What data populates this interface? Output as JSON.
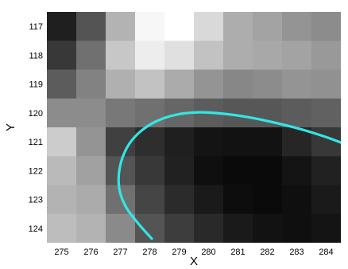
{
  "chart_data": {
    "type": "heatmap",
    "xlabel": "X",
    "ylabel": "Y",
    "x_ticks": [
      275,
      276,
      277,
      278,
      279,
      280,
      281,
      282,
      283,
      284
    ],
    "y_ticks": [
      117,
      118,
      119,
      120,
      121,
      122,
      123,
      124
    ],
    "xlim": [
      274.5,
      284.5
    ],
    "ylim": [
      116.5,
      124.5
    ],
    "y_axis_direction": "down",
    "colormap": "gray",
    "x_cells": [
      274.5,
      275.5,
      276.5,
      277.5,
      278.5,
      279.5,
      280.5,
      281.5,
      282.5,
      283.5,
      284.5
    ],
    "y_cells": [
      116.5,
      117.5,
      118.5,
      119.5,
      120.5,
      121.5,
      122.5,
      123.5,
      124.5
    ],
    "intensity": [
      [
        0.12,
        0.33,
        0.7,
        0.97,
        1.0,
        0.85,
        0.68,
        0.64,
        0.58,
        0.55
      ],
      [
        0.22,
        0.44,
        0.78,
        0.93,
        0.88,
        0.76,
        0.68,
        0.66,
        0.64,
        0.6
      ],
      [
        0.36,
        0.51,
        0.69,
        0.76,
        0.67,
        0.58,
        0.53,
        0.55,
        0.58,
        0.57
      ],
      [
        0.55,
        0.55,
        0.47,
        0.44,
        0.4,
        0.36,
        0.34,
        0.34,
        0.36,
        0.38
      ],
      [
        0.8,
        0.58,
        0.25,
        0.18,
        0.12,
        0.08,
        0.07,
        0.07,
        0.15,
        0.22
      ],
      [
        0.73,
        0.63,
        0.33,
        0.22,
        0.13,
        0.06,
        0.04,
        0.04,
        0.08,
        0.13
      ],
      [
        0.7,
        0.67,
        0.44,
        0.27,
        0.17,
        0.1,
        0.05,
        0.04,
        0.06,
        0.1
      ],
      [
        0.74,
        0.7,
        0.54,
        0.33,
        0.24,
        0.16,
        0.1,
        0.07,
        0.06,
        0.08
      ]
    ],
    "contour": {
      "color": "#33e6e6",
      "points": [
        [
          278.07,
          124.36
        ],
        [
          277.63,
          123.86
        ],
        [
          277.19,
          123.26
        ],
        [
          276.96,
          122.61
        ],
        [
          276.98,
          121.89
        ],
        [
          277.22,
          121.21
        ],
        [
          277.62,
          120.7
        ],
        [
          278.2,
          120.3
        ],
        [
          278.91,
          120.06
        ],
        [
          279.67,
          119.98
        ],
        [
          280.43,
          120.02
        ],
        [
          281.18,
          120.12
        ],
        [
          281.91,
          120.26
        ],
        [
          282.63,
          120.43
        ],
        [
          283.33,
          120.62
        ],
        [
          283.98,
          120.83
        ],
        [
          284.54,
          121.04
        ]
      ]
    }
  }
}
